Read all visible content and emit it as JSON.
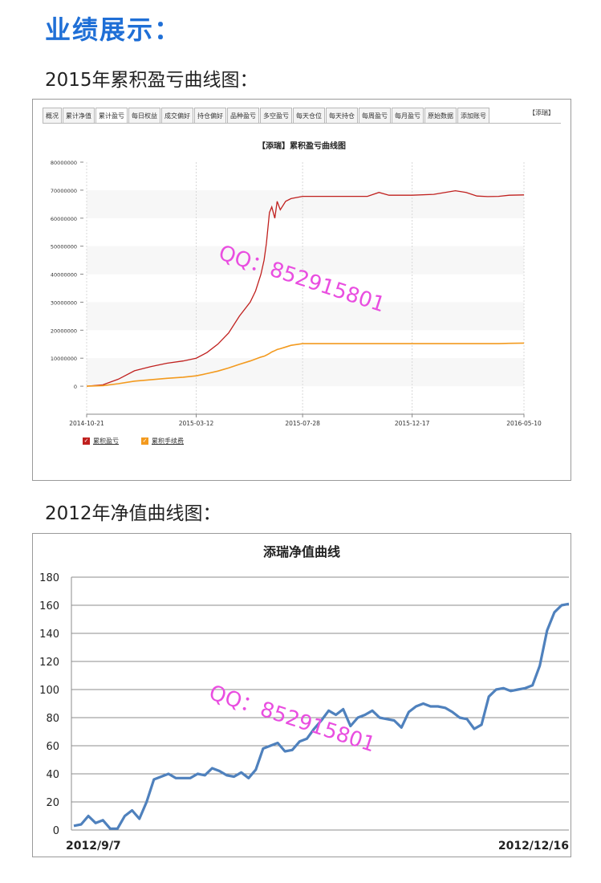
{
  "page": {
    "heading": "业绩展示：",
    "section1_title": "2015年累积盈亏曲线图：",
    "section2_title": "2012年净值曲线图："
  },
  "tabs": [
    {
      "label": "概况"
    },
    {
      "label": "累计净值"
    },
    {
      "label": "累计盈亏",
      "active": true
    },
    {
      "label": "每日权益"
    },
    {
      "label": "成交偏好"
    },
    {
      "label": "持仓偏好"
    },
    {
      "label": "品种盈亏"
    },
    {
      "label": "多空盈亏"
    },
    {
      "label": "每天仓位"
    },
    {
      "label": "每天持仓"
    },
    {
      "label": "每周盈亏"
    },
    {
      "label": "每月盈亏"
    },
    {
      "label": "原始数据"
    },
    {
      "label": "添加账号"
    }
  ],
  "corner_link": "【添瑞】",
  "watermark": "QQ：852915801",
  "colors": {
    "heading": "#1f6fd6",
    "series_pnl": "#c0201e",
    "series_fee": "#f39a1e",
    "nav_line": "#4f81bd",
    "watermark": "#e94ee0"
  },
  "chart_data": [
    {
      "type": "line",
      "title": "【添瑞】累积盈亏曲线图",
      "xlabel": "",
      "ylabel": "",
      "x_ticks": [
        "2014-10-21",
        "2015-03-12",
        "2015-07-28",
        "2015-12-17",
        "2016-05-10"
      ],
      "y_ticks": [
        "80000000",
        "70000000",
        "60000000",
        "50000000",
        "40000000",
        "30000000",
        "20000000",
        "10000000",
        "0"
      ],
      "ylim": [
        -10000000,
        80000000
      ],
      "grid": "vertical",
      "legend": "bottom-left",
      "x": [
        "2014-10-21",
        "2014-11-11",
        "2014-12-01",
        "2014-12-22",
        "2015-01-12",
        "2015-02-02",
        "2015-02-23",
        "2015-03-12",
        "2015-03-26",
        "2015-04-09",
        "2015-04-23",
        "2015-05-07",
        "2015-05-21",
        "2015-05-28",
        "2015-06-04",
        "2015-06-08",
        "2015-06-11",
        "2015-06-15",
        "2015-06-18",
        "2015-06-22",
        "2015-06-25",
        "2015-06-29",
        "2015-07-06",
        "2015-07-13",
        "2015-07-28",
        "2015-08-25",
        "2015-09-22",
        "2015-10-20",
        "2015-11-04",
        "2015-11-17",
        "2015-12-01",
        "2015-12-17",
        "2016-01-14",
        "2016-02-11",
        "2016-02-25",
        "2016-03-10",
        "2016-03-24",
        "2016-04-07",
        "2016-04-21",
        "2016-05-10"
      ],
      "series": [
        {
          "name": "累积盈亏",
          "values": [
            0,
            500000,
            2500000,
            5500000,
            7000000,
            8200000,
            9000000,
            10000000,
            12000000,
            15000000,
            19000000,
            25000000,
            30000000,
            34000000,
            40000000,
            45000000,
            51000000,
            62000000,
            64000000,
            60000000,
            66000000,
            63000000,
            66000000,
            67000000,
            67800000,
            67800000,
            67800000,
            67800000,
            69200000,
            68200000,
            68200000,
            68200000,
            68500000,
            69800000,
            69200000,
            67900000,
            67700000,
            67800000,
            68200000,
            68300000
          ]
        },
        {
          "name": "累积手续费",
          "values": [
            0,
            200000,
            900000,
            1800000,
            2300000,
            2800000,
            3200000,
            3700000,
            4500000,
            5400000,
            6500000,
            7800000,
            9000000,
            9700000,
            10400000,
            10700000,
            11100000,
            11700000,
            12200000,
            12700000,
            13100000,
            13400000,
            14000000,
            14600000,
            15200000,
            15200000,
            15200000,
            15200000,
            15200000,
            15200000,
            15200000,
            15200000,
            15200000,
            15200000,
            15200000,
            15200000,
            15200000,
            15200000,
            15300000,
            15400000
          ]
        }
      ]
    },
    {
      "type": "line",
      "title": "添瑞净值曲线",
      "xlabel": "",
      "ylabel": "",
      "x_ticks": [
        "2012/9/7",
        "2012/12/16"
      ],
      "y_ticks": [
        "180",
        "160",
        "140",
        "120",
        "100",
        "80",
        "60",
        "40",
        "20",
        "0"
      ],
      "ylim": [
        0,
        180
      ],
      "grid": "horizontal",
      "legend": "none",
      "x_range": [
        "2012/9/7",
        "2012/12/16"
      ],
      "series": [
        {
          "values": [
            3,
            4,
            10,
            5,
            7,
            1,
            1,
            10,
            14,
            8,
            20,
            36,
            38,
            40,
            37,
            37,
            37,
            40,
            39,
            44,
            42,
            39,
            38,
            41,
            37,
            43,
            58,
            60,
            62,
            56,
            57,
            63,
            65,
            72,
            78,
            85,
            82,
            86,
            74,
            80,
            82,
            85,
            80,
            79,
            78,
            73,
            84,
            88,
            90,
            88,
            88,
            87,
            84,
            80,
            79,
            72,
            75,
            95,
            100,
            101,
            99,
            100,
            101,
            103,
            117,
            142,
            155,
            160,
            161
          ]
        }
      ]
    }
  ]
}
